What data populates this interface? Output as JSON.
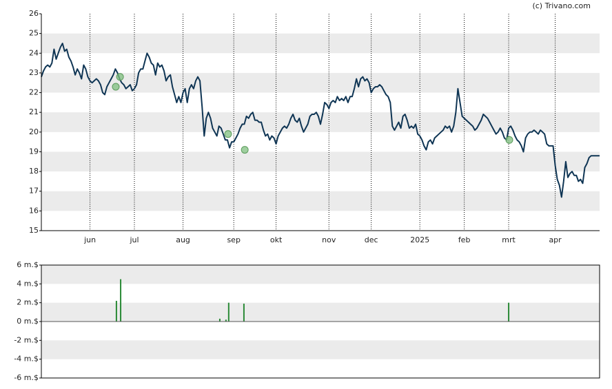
{
  "credit": "(c) Trivano.com",
  "chart_data": [
    {
      "type": "line",
      "x": [
        0,
        1,
        2,
        3,
        4,
        5,
        6,
        7,
        8,
        9,
        10,
        11,
        12,
        13,
        14,
        15,
        16,
        17,
        18,
        19,
        20,
        21,
        22,
        23,
        24,
        25,
        26,
        27,
        28,
        29,
        30,
        31,
        32,
        33,
        34,
        35,
        36,
        37,
        38,
        39,
        40,
        41,
        42,
        43,
        44,
        45,
        46,
        47,
        48,
        49,
        50,
        51,
        52,
        53,
        54,
        55,
        56,
        57,
        58,
        59,
        60,
        61,
        62,
        63,
        64,
        65,
        66,
        67,
        68,
        69,
        70,
        71,
        72,
        73,
        74,
        75,
        76,
        77,
        78,
        79,
        80,
        81,
        82,
        83,
        84,
        85,
        86,
        87,
        88,
        89,
        90,
        91,
        92,
        93,
        94,
        95,
        96,
        97,
        98,
        99,
        100,
        101,
        102,
        103,
        104,
        105,
        106,
        107,
        108,
        109,
        110,
        111,
        112,
        113,
        114,
        115,
        116,
        117,
        118,
        119,
        120,
        121,
        122,
        123,
        124,
        125,
        126,
        127,
        128,
        129,
        130,
        131,
        132,
        133,
        134,
        135,
        136,
        137,
        138,
        139,
        140,
        141,
        142,
        143,
        144,
        145,
        146,
        147,
        148,
        149,
        150,
        151,
        152,
        153,
        154,
        155,
        156,
        157,
        158,
        159,
        160,
        161,
        162,
        163,
        164,
        165,
        166,
        167,
        168,
        169,
        170,
        171,
        172,
        173,
        174,
        175,
        176,
        177,
        178,
        179,
        180,
        181,
        182,
        183,
        184,
        185,
        186,
        187,
        188,
        189,
        190,
        191,
        192,
        193,
        194,
        195,
        196,
        197,
        198,
        199,
        200,
        201,
        202,
        203,
        204,
        205,
        206,
        207,
        208,
        209,
        210,
        211,
        212,
        213,
        214,
        215,
        216,
        217,
        218,
        219,
        220,
        221,
        222,
        223,
        224,
        225,
        226,
        227,
        228,
        229,
        230,
        231,
        232,
        233,
        234,
        235,
        236,
        237,
        238,
        239,
        240,
        241,
        242,
        243,
        244,
        245,
        246,
        247,
        248,
        249,
        250,
        251,
        252,
        253,
        254,
        255,
        256,
        257,
        258,
        259,
        260,
        261,
        262,
        263,
        264
      ],
      "xlim": [
        0,
        264
      ],
      "xticks": [
        {
          "value": 23,
          "label": "jun"
        },
        {
          "value": 44,
          "label": "jul"
        },
        {
          "value": 67,
          "label": "aug"
        },
        {
          "value": 91,
          "label": "sep"
        },
        {
          "value": 111,
          "label": "okt"
        },
        {
          "value": 136,
          "label": "nov"
        },
        {
          "value": 156,
          "label": "dec"
        },
        {
          "value": 179,
          "label": "2025"
        },
        {
          "value": 200,
          "label": "feb"
        },
        {
          "value": 221,
          "label": "mrt"
        },
        {
          "value": 243,
          "label": "apr"
        }
      ],
      "ylim": [
        15,
        26
      ],
      "yticks": [
        15,
        16,
        17,
        18,
        19,
        20,
        21,
        22,
        23,
        24,
        25,
        26
      ],
      "series": [
        {
          "color": "#0f3554",
          "values": [
            22.8,
            23.1,
            23.3,
            23.4,
            23.3,
            23.5,
            24.2,
            23.7,
            24.0,
            24.3,
            24.5,
            24.1,
            24.2,
            23.8,
            23.6,
            23.3,
            22.9,
            23.2,
            23.0,
            22.7,
            23.4,
            23.2,
            22.8,
            22.6,
            22.5,
            22.6,
            22.7,
            22.6,
            22.4,
            22.0,
            21.9,
            22.3,
            22.5,
            22.7,
            22.9,
            23.2,
            23.0,
            22.7,
            22.5,
            22.4,
            22.2,
            22.3,
            22.4,
            22.1,
            22.2,
            22.4,
            23.0,
            23.2,
            23.2,
            23.6,
            24.0,
            23.8,
            23.5,
            23.4,
            22.9,
            23.5,
            23.3,
            23.4,
            23.1,
            22.6,
            22.8,
            22.9,
            22.3,
            21.9,
            21.5,
            21.8,
            21.5,
            22.0,
            22.2,
            21.5,
            22.2,
            22.4,
            22.2,
            22.6,
            22.8,
            22.6,
            21.3,
            19.8,
            20.7,
            21.0,
            20.7,
            20.2,
            20.0,
            19.8,
            20.3,
            20.2,
            19.9,
            19.6,
            19.6,
            19.2,
            19.5,
            19.5,
            19.7,
            19.9,
            20.2,
            20.4,
            20.4,
            20.8,
            20.7,
            20.9,
            21.0,
            20.6,
            20.6,
            20.5,
            20.5,
            20.1,
            19.8,
            19.9,
            19.6,
            19.8,
            19.7,
            19.4,
            19.8,
            20.0,
            20.2,
            20.3,
            20.2,
            20.4,
            20.7,
            20.9,
            20.6,
            20.5,
            20.7,
            20.3,
            20.0,
            20.2,
            20.4,
            20.8,
            20.9,
            20.9,
            21.0,
            20.8,
            20.4,
            20.9,
            21.5,
            21.4,
            21.2,
            21.5,
            21.6,
            21.5,
            21.8,
            21.6,
            21.7,
            21.6,
            21.8,
            21.5,
            21.8,
            21.8,
            22.2,
            22.7,
            22.3,
            22.7,
            22.8,
            22.6,
            22.7,
            22.5,
            22.0,
            22.2,
            22.3,
            22.3,
            22.4,
            22.3,
            22.1,
            21.9,
            21.8,
            21.5,
            20.3,
            20.1,
            20.3,
            20.5,
            20.2,
            20.8,
            20.9,
            20.6,
            20.2,
            20.3,
            20.2,
            20.4,
            19.9,
            19.8,
            19.6,
            19.3,
            19.1,
            19.5,
            19.6,
            19.4,
            19.7,
            19.8,
            19.9,
            20.0,
            20.1,
            20.3,
            20.2,
            20.3,
            20.0,
            20.3,
            21.0,
            22.2,
            21.5,
            20.8,
            20.7,
            20.6,
            20.5,
            20.4,
            20.3,
            20.1,
            20.2,
            20.4,
            20.6,
            20.9,
            20.8,
            20.7,
            20.5,
            20.3,
            20.1,
            19.9,
            20.0,
            20.2,
            20.0,
            19.7,
            19.6,
            20.2,
            20.3,
            20.1,
            19.8,
            19.6,
            19.5,
            19.3,
            19.0,
            19.7,
            19.9,
            20.0,
            20.0,
            20.1,
            20.0,
            19.9,
            20.1,
            20.0,
            19.9,
            19.4,
            19.3,
            19.3,
            19.3,
            18.3,
            17.6,
            17.3,
            16.7,
            17.5,
            18.5,
            17.7,
            17.9,
            18.0,
            17.8,
            17.8,
            17.5,
            17.6,
            17.4,
            18.2,
            18.4,
            18.7,
            18.8,
            18.8,
            18.8,
            18.8,
            18.8
          ]
        }
      ],
      "markers": {
        "color": "#7fbf7f",
        "x": [
          35.2,
          37.2,
          88.3,
          96.2,
          221.3
        ],
        "values": [
          22.3,
          22.8,
          19.9,
          19.1,
          19.6
        ]
      }
    },
    {
      "type": "bar",
      "x": [
        35.5,
        37.5,
        84.4,
        87.3,
        88.6,
        95.8,
        221
      ],
      "values": [
        2.2,
        4.5,
        0.3,
        0.2,
        2.0,
        1.9,
        2.0
      ],
      "color": "#2a8a36",
      "xlim": [
        0,
        264
      ],
      "ylim": [
        -6,
        6
      ],
      "yticks": [
        {
          "value": 6,
          "label": "6 m.$"
        },
        {
          "value": 4,
          "label": "4 m.$"
        },
        {
          "value": 2,
          "label": "2 m.$"
        },
        {
          "value": 0,
          "label": "0 m.$"
        },
        {
          "value": -2,
          "label": "-2 m.$"
        },
        {
          "value": -4,
          "label": "-4 m.$"
        },
        {
          "value": -6,
          "label": "-6 m.$"
        }
      ]
    }
  ]
}
